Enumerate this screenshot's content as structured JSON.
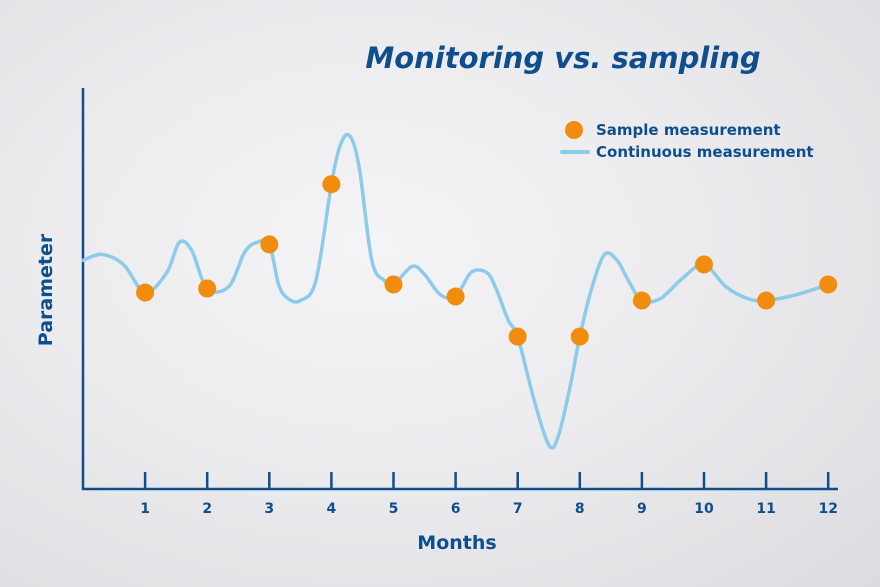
{
  "chart_data": {
    "type": "line",
    "title": "Monitoring vs. sampling",
    "xlabel": "Months",
    "ylabel": "Parameter",
    "x_ticks": [
      "1",
      "2",
      "3",
      "4",
      "5",
      "6",
      "7",
      "8",
      "9",
      "10",
      "11",
      "12"
    ],
    "xlim": [
      0,
      12
    ],
    "ylim": [
      0,
      10
    ],
    "grid": false,
    "legend_position": "top-right",
    "series": [
      {
        "name": "Sample measurement",
        "kind": "scatter",
        "color": "#f28c0f",
        "x": [
          1,
          2,
          3,
          4,
          5,
          6,
          7,
          8,
          9,
          10,
          11,
          12
        ],
        "y": [
          4.9,
          5.0,
          6.1,
          7.6,
          5.1,
          4.8,
          3.8,
          3.8,
          4.7,
          5.6,
          4.7,
          5.1
        ]
      },
      {
        "name": "Continuous measurement",
        "kind": "line",
        "color": "#8ccbea",
        "x": [
          0,
          0.3,
          0.65,
          1.0,
          1.35,
          1.55,
          1.75,
          2.0,
          2.35,
          2.6,
          2.8,
          3.0,
          3.15,
          3.3,
          3.5,
          3.75,
          4.0,
          4.15,
          4.3,
          4.45,
          4.65,
          4.85,
          5.0,
          5.3,
          5.5,
          5.75,
          6.0,
          6.25,
          6.5,
          6.65,
          6.85,
          7.0,
          7.25,
          7.5,
          7.65,
          7.85,
          8.0,
          8.2,
          8.4,
          8.6,
          8.8,
          9.0,
          9.3,
          9.65,
          10.0,
          10.35,
          10.7,
          11.0,
          11.5,
          12.0
        ],
        "y": [
          5.7,
          5.85,
          5.6,
          4.9,
          5.4,
          6.15,
          5.95,
          5.0,
          5.05,
          5.9,
          6.15,
          6.1,
          5.1,
          4.75,
          4.7,
          5.2,
          7.6,
          8.6,
          8.8,
          8.0,
          5.7,
          5.2,
          5.1,
          5.55,
          5.35,
          4.85,
          4.8,
          5.4,
          5.4,
          5.0,
          4.2,
          3.8,
          2.3,
          1.1,
          1.3,
          2.6,
          3.8,
          5.05,
          5.85,
          5.7,
          5.15,
          4.7,
          4.75,
          5.25,
          5.6,
          5.05,
          4.75,
          4.7,
          4.85,
          5.1
        ]
      }
    ]
  }
}
